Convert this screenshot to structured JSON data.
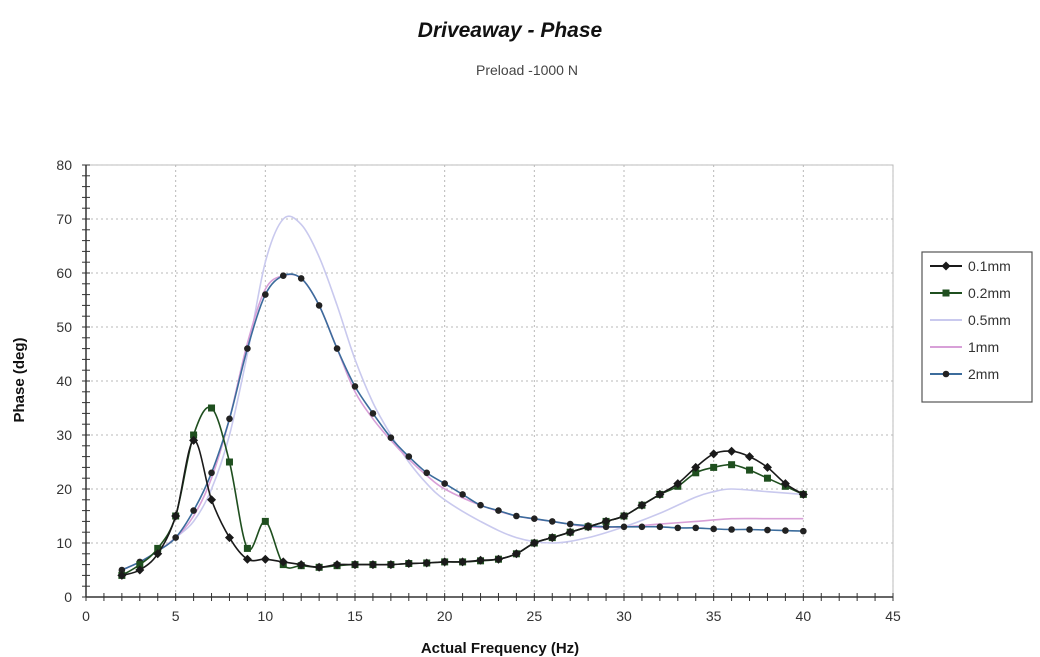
{
  "chart_data": {
    "type": "line",
    "title": "Driveaway - Phase",
    "subtitle": "Preload -1000 N",
    "xlabel": "Actual Frequency (Hz)",
    "ylabel": "Phase (deg)",
    "xlim": [
      0,
      45
    ],
    "ylim": [
      0,
      80
    ],
    "xticks": [
      "0",
      "5",
      "10",
      "15",
      "20",
      "25",
      "30",
      "35",
      "40",
      "45"
    ],
    "yticks": [
      "0",
      "10",
      "20",
      "30",
      "40",
      "50",
      "60",
      "70",
      "80"
    ],
    "grid": true,
    "legend": "right",
    "series": [
      {
        "name": "0.1mm",
        "color": "#1a1a1a",
        "marker": "diamond",
        "x": [
          2,
          3,
          4,
          5,
          6,
          7,
          8,
          9,
          10,
          11,
          12,
          13,
          14,
          15,
          16,
          17,
          18,
          19,
          20,
          21,
          22,
          23,
          24,
          25,
          26,
          27,
          28,
          29,
          30,
          31,
          32,
          33,
          34,
          35,
          36,
          37,
          38,
          39,
          40
        ],
        "y": [
          4,
          5,
          8,
          15,
          29,
          18,
          11,
          7,
          7,
          6.5,
          6,
          5.5,
          6,
          6,
          6,
          6,
          6.2,
          6.3,
          6.5,
          6.5,
          6.8,
          7,
          8,
          10,
          11,
          12,
          13,
          14,
          15,
          17,
          19,
          21,
          24,
          26.5,
          27,
          26,
          24,
          21,
          19
        ]
      },
      {
        "name": "0.2mm",
        "color": "#1f4f1f",
        "marker": "square",
        "x": [
          2,
          3,
          4,
          5,
          6,
          7,
          8,
          9,
          10,
          11,
          12,
          13,
          14,
          15,
          16,
          17,
          18,
          19,
          20,
          21,
          22,
          23,
          24,
          25,
          26,
          27,
          28,
          29,
          30,
          31,
          32,
          33,
          34,
          35,
          36,
          37,
          38,
          39,
          40
        ],
        "y": [
          4,
          6,
          9,
          15,
          30,
          35,
          25,
          9,
          14,
          6,
          5.8,
          5.5,
          5.8,
          6,
          6,
          6,
          6.2,
          6.3,
          6.5,
          6.5,
          6.7,
          7,
          8,
          10,
          11,
          12,
          13,
          14,
          15,
          17,
          19,
          20.5,
          23,
          24,
          24.5,
          23.5,
          22,
          20.5,
          19
        ]
      },
      {
        "name": "0.5mm",
        "color": "#c9c9ee",
        "marker": "none",
        "x": [
          2,
          3,
          4,
          5,
          6,
          7,
          8,
          9,
          10,
          11,
          12,
          13,
          14,
          15,
          16,
          17,
          18,
          19,
          20,
          22,
          24,
          26,
          28,
          30,
          32,
          34,
          35,
          36,
          38,
          40
        ],
        "y": [
          5,
          6.5,
          8.5,
          11,
          14,
          20,
          30,
          45,
          62,
          70,
          69,
          63,
          54,
          44,
          36,
          30,
          25,
          21,
          18,
          14,
          11,
          10,
          11,
          13,
          15.5,
          18.5,
          19.5,
          20,
          19.5,
          19
        ]
      },
      {
        "name": "1mm",
        "color": "#d8a0d8",
        "marker": "none",
        "x": [
          2,
          3,
          4,
          5,
          6,
          7,
          8,
          9,
          10,
          11,
          12,
          13,
          14,
          15,
          16,
          17,
          18,
          19,
          20,
          22,
          24,
          26,
          28,
          30,
          32,
          34,
          36,
          38,
          40
        ],
        "y": [
          5,
          6.5,
          8.5,
          11,
          15,
          22,
          33,
          47,
          57,
          59.5,
          59,
          54,
          46,
          38,
          33,
          29,
          25.5,
          22.5,
          20,
          17,
          15,
          14,
          13,
          13,
          13.5,
          14,
          14.5,
          14.5,
          14.5
        ]
      },
      {
        "name": "2mm",
        "color": "#3c6c9c",
        "marker": "circle",
        "x": [
          2,
          3,
          4,
          5,
          6,
          7,
          8,
          9,
          10,
          11,
          12,
          13,
          14,
          15,
          16,
          17,
          18,
          19,
          20,
          21,
          22,
          23,
          24,
          25,
          26,
          27,
          28,
          29,
          30,
          31,
          32,
          33,
          34,
          35,
          36,
          37,
          38,
          39,
          40
        ],
        "y": [
          5,
          6.5,
          8.5,
          11,
          16,
          23,
          33,
          46,
          56,
          59.5,
          59,
          54,
          46,
          39,
          34,
          29.5,
          26,
          23,
          21,
          19,
          17,
          16,
          15,
          14.5,
          14,
          13.5,
          13.2,
          13,
          13,
          13,
          13,
          12.8,
          12.8,
          12.6,
          12.5,
          12.5,
          12.4,
          12.3,
          12.2
        ]
      }
    ]
  }
}
